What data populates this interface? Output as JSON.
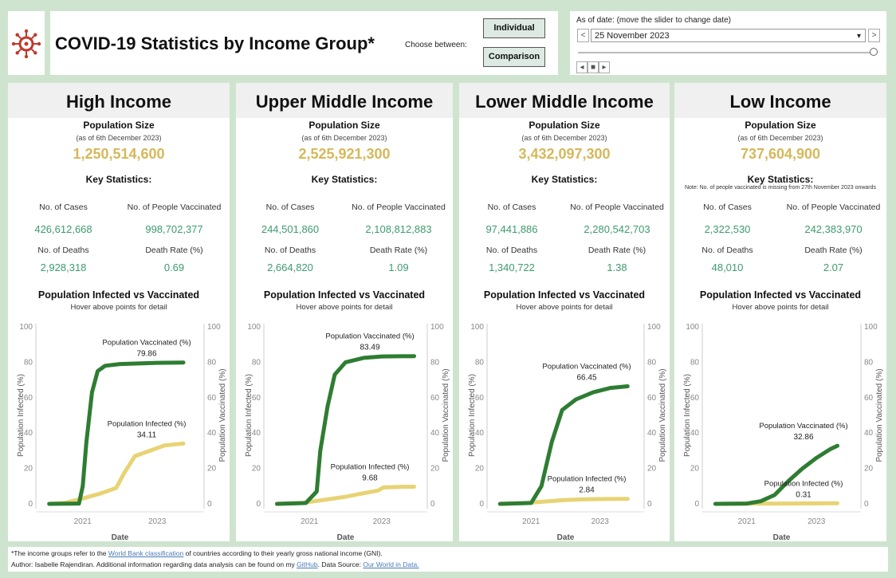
{
  "header": {
    "title": "COVID-19 Statistics by Income Group*",
    "choose_label": "Choose between:",
    "individual_label": "Individual",
    "comparison_label": "Comparison"
  },
  "date_filter": {
    "label": "As of date: (move the slider to change date)",
    "selected_date": "25 November 2023",
    "prev_symbol": "<",
    "next_symbol": ">",
    "dropdown_symbol": "▾",
    "slider_position": 1.0,
    "playback_buttons": [
      "◂",
      "■",
      "▸"
    ]
  },
  "labels": {
    "population_size": "Population Size",
    "population_date": "(as of 6th December 2023)",
    "key_statistics": "Key Statistics:",
    "cases": "No. of Cases",
    "vaccinated": "No. of People Vaccinated",
    "deaths": "No. of Deaths",
    "death_rate": "Death Rate (%)",
    "chart_title": "Population Infected vs Vaccinated",
    "chart_subtitle": "Hover above points for detail"
  },
  "colors": {
    "vaccinated_line": "#2e7d32",
    "infected_line": "#e8d374",
    "stat_value": "#3e9b6f",
    "population_value": "#d6b85a"
  },
  "panels": [
    {
      "name": "High Income",
      "population": "1,250,514,600",
      "note": "",
      "cases": "426,612,668",
      "vaccinated": "998,702,377",
      "deaths": "2,928,318",
      "death_rate": "0.69",
      "chart_data": {
        "type": "line",
        "xlabel": "Date",
        "ylabel_left": "Population Infected (%)",
        "ylabel_right": "Population Vaccinated (%)",
        "ylim": [
          0,
          100
        ],
        "yticks": [
          0,
          20,
          40,
          60,
          80,
          100
        ],
        "xticks": [
          "2021",
          "2023"
        ],
        "x_range": [
          2020.0,
          2024.0
        ],
        "series": [
          {
            "name": "Population Vaccinated (%)",
            "label_value": "79.86",
            "points": [
              [
                2020.1,
                0
              ],
              [
                2020.9,
                0.2
              ],
              [
                2021.0,
                10
              ],
              [
                2021.1,
                35
              ],
              [
                2021.25,
                63
              ],
              [
                2021.4,
                75
              ],
              [
                2021.6,
                78
              ],
              [
                2022.0,
                79
              ],
              [
                2023.0,
                79.7
              ],
              [
                2023.7,
                79.86
              ]
            ]
          },
          {
            "name": "Population Infected (%)",
            "label_value": "34.11",
            "points": [
              [
                2020.1,
                0
              ],
              [
                2020.5,
                0.5
              ],
              [
                2021.0,
                3
              ],
              [
                2021.5,
                6
              ],
              [
                2021.9,
                9
              ],
              [
                2022.1,
                17
              ],
              [
                2022.4,
                27
              ],
              [
                2022.8,
                30
              ],
              [
                2023.2,
                33
              ],
              [
                2023.7,
                34.11
              ]
            ]
          }
        ]
      }
    },
    {
      "name": "Upper Middle Income",
      "population": "2,525,921,300",
      "note": "",
      "cases": "244,501,860",
      "vaccinated": "2,108,812,883",
      "deaths": "2,664,820",
      "death_rate": "1.09",
      "chart_data": {
        "type": "line",
        "xlabel": "Date",
        "ylabel_left": "Population Infected (%)",
        "ylabel_right": "Population Vaccinated (%)",
        "ylim": [
          0,
          100
        ],
        "yticks": [
          0,
          20,
          40,
          60,
          80,
          100
        ],
        "xticks": [
          "2021",
          "2023"
        ],
        "x_range": [
          2020.0,
          2024.0
        ],
        "series": [
          {
            "name": "Population Vaccinated (%)",
            "label_value": "83.49",
            "points": [
              [
                2020.1,
                0
              ],
              [
                2020.9,
                0.5
              ],
              [
                2021.2,
                7
              ],
              [
                2021.3,
                30
              ],
              [
                2021.5,
                55
              ],
              [
                2021.7,
                73
              ],
              [
                2022.0,
                80
              ],
              [
                2022.5,
                82.5
              ],
              [
                2023.0,
                83.3
              ],
              [
                2023.9,
                83.49
              ]
            ]
          },
          {
            "name": "Population Infected (%)",
            "label_value": "9.68",
            "points": [
              [
                2020.1,
                0
              ],
              [
                2020.8,
                0.5
              ],
              [
                2021.5,
                2.5
              ],
              [
                2022.0,
                4
              ],
              [
                2022.5,
                6
              ],
              [
                2022.9,
                7.5
              ],
              [
                2023.05,
                9.3
              ],
              [
                2023.5,
                9.6
              ],
              [
                2023.9,
                9.68
              ]
            ]
          }
        ]
      }
    },
    {
      "name": "Lower Middle Income",
      "population": "3,432,097,300",
      "note": "",
      "cases": "97,441,886",
      "vaccinated": "2,280,542,703",
      "deaths": "1,340,722",
      "death_rate": "1.38",
      "chart_data": {
        "type": "line",
        "xlabel": "Date",
        "ylabel_left": "Population Infected (%)",
        "ylabel_right": "Population Vaccinated (%)",
        "ylim": [
          0,
          100
        ],
        "yticks": [
          0,
          20,
          40,
          60,
          80,
          100
        ],
        "xticks": [
          "2021",
          "2023"
        ],
        "x_range": [
          2020.0,
          2024.0
        ],
        "series": [
          {
            "name": "Population Vaccinated (%)",
            "label_value": "66.45",
            "points": [
              [
                2020.1,
                0
              ],
              [
                2021.0,
                0.5
              ],
              [
                2021.3,
                10
              ],
              [
                2021.6,
                35
              ],
              [
                2021.9,
                53
              ],
              [
                2022.3,
                59
              ],
              [
                2022.8,
                63
              ],
              [
                2023.3,
                65.5
              ],
              [
                2023.8,
                66.45
              ]
            ]
          },
          {
            "name": "Population Infected (%)",
            "label_value": "2.84",
            "points": [
              [
                2020.1,
                0
              ],
              [
                2020.8,
                0.4
              ],
              [
                2021.5,
                1.5
              ],
              [
                2022.0,
                2.2
              ],
              [
                2022.6,
                2.6
              ],
              [
                2023.2,
                2.75
              ],
              [
                2023.8,
                2.84
              ]
            ]
          }
        ]
      }
    },
    {
      "name": "Low Income",
      "population": "737,604,900",
      "note": "Note: No. of people vaccinated is missing from 27th November 2023 onwards",
      "cases": "2,322,530",
      "vaccinated": "242,383,970",
      "deaths": "48,010",
      "death_rate": "2.07",
      "chart_data": {
        "type": "line",
        "xlabel": "Date",
        "ylabel_left": "Population Infected (%)",
        "ylabel_right": "Population Vaccinated (%)",
        "ylim": [
          0,
          100
        ],
        "yticks": [
          0,
          20,
          40,
          60,
          80,
          100
        ],
        "xticks": [
          "2021",
          "2023"
        ],
        "x_range": [
          2020.0,
          2024.0
        ],
        "series": [
          {
            "name": "Population Vaccinated (%)",
            "label_value": "32.86",
            "points": [
              [
                2020.1,
                0
              ],
              [
                2021.0,
                0.2
              ],
              [
                2021.4,
                1.5
              ],
              [
                2021.8,
                5
              ],
              [
                2022.2,
                13
              ],
              [
                2022.6,
                20
              ],
              [
                2023.0,
                26
              ],
              [
                2023.4,
                31
              ],
              [
                2023.6,
                32.86
              ]
            ]
          },
          {
            "name": "Population Infected (%)",
            "label_value": "0.31",
            "points": [
              [
                2020.1,
                0
              ],
              [
                2021.0,
                0.1
              ],
              [
                2022.0,
                0.2
              ],
              [
                2023.0,
                0.28
              ],
              [
                2023.6,
                0.31
              ]
            ]
          }
        ]
      }
    }
  ],
  "footer": {
    "line1_pre": "*The income groups refer to the ",
    "line1_link": "World Bank classification",
    "line1_post": " of countries according  to their yearly gross national income (GNI).",
    "line2_pre": "Author: Isabelle Rajendiran. Additional information regarding data analysis can be found on my ",
    "line2_link1": "GitHub",
    "line2_mid": ".  Data Source: ",
    "line2_link2": "Our World in Data."
  }
}
